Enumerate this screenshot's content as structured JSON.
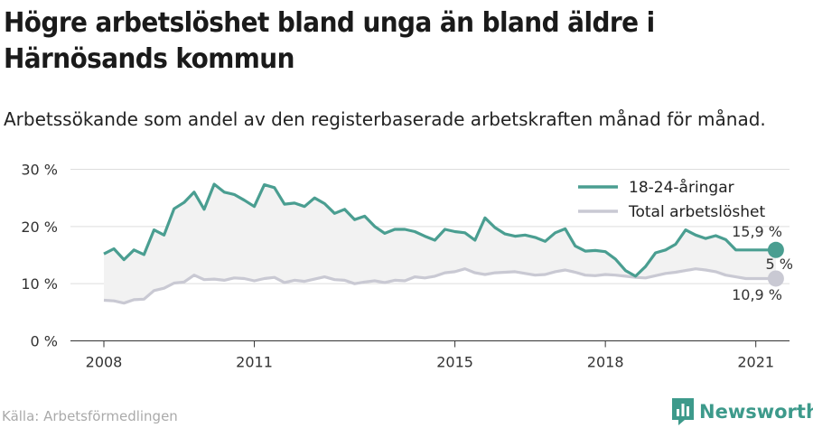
{
  "title": "Högre arbetslöshet bland unga än bland äldre i Härnösands kommun",
  "subtitle": "Arbetssökande som andel av den registerbaserade arbetskraften månad för månad.",
  "source": "Källa: Arbetsförmedlingen",
  "brand": {
    "label": "Newsworthy",
    "icon": "bar-chart-logo-icon"
  },
  "colors": {
    "youth": "#4a9e91",
    "total": "#c9c9d3",
    "gap": "#f2f2f2",
    "grid": "#dddddd"
  },
  "chart_data": {
    "type": "line",
    "x_ticks": [
      "2008",
      "2011",
      "2015",
      "2018",
      "2021"
    ],
    "y_ticks": [
      "0 %",
      "10 %",
      "20 %",
      "30 %"
    ],
    "ylim": [
      0,
      30
    ],
    "legend": [
      "18-24-åringar",
      "Total arbetslöshet"
    ],
    "legend_position": "top-right",
    "grid": "horizontal",
    "end_labels": {
      "youth": "15,9 %",
      "gap": "5 %",
      "total": "10,9 %"
    },
    "series": [
      {
        "name": "18-24-åringar",
        "x": [
          2008.0,
          2008.2,
          2008.4,
          2008.6,
          2008.8,
          2009.0,
          2009.2,
          2009.4,
          2009.6,
          2009.8,
          2010.0,
          2010.2,
          2010.4,
          2010.6,
          2010.8,
          2011.0,
          2011.2,
          2011.4,
          2011.6,
          2011.8,
          2012.0,
          2012.2,
          2012.4,
          2012.6,
          2012.8,
          2013.0,
          2013.2,
          2013.4,
          2013.6,
          2013.8,
          2014.0,
          2014.2,
          2014.4,
          2014.6,
          2014.8,
          2015.0,
          2015.2,
          2015.4,
          2015.6,
          2015.8,
          2016.0,
          2016.2,
          2016.4,
          2016.6,
          2016.8,
          2017.0,
          2017.2,
          2017.4,
          2017.6,
          2017.8,
          2018.0,
          2018.2,
          2018.4,
          2018.6,
          2018.8,
          2019.0,
          2019.2,
          2019.4,
          2019.6,
          2019.8,
          2020.0,
          2020.2,
          2020.4,
          2020.6,
          2020.8,
          2021.0,
          2021.2,
          2021.4
        ],
        "values": [
          15.2,
          16.1,
          14.2,
          15.9,
          15.1,
          19.4,
          18.5,
          23.1,
          24.2,
          26.0,
          23.0,
          27.4,
          26.0,
          25.6,
          24.6,
          23.5,
          27.3,
          26.8,
          23.9,
          24.1,
          23.5,
          25.0,
          24.0,
          22.3,
          23.0,
          21.2,
          21.8,
          20.0,
          18.8,
          19.5,
          19.5,
          19.1,
          18.3,
          17.6,
          19.5,
          19.1,
          18.9,
          17.6,
          21.5,
          19.8,
          18.7,
          18.3,
          18.5,
          18.1,
          17.4,
          18.9,
          19.6,
          16.6,
          15.7,
          15.8,
          15.6,
          14.3,
          12.3,
          11.3,
          13.0,
          15.4,
          15.9,
          16.9,
          19.4,
          18.5,
          17.9,
          18.4,
          17.7,
          15.9,
          15.9,
          15.9,
          15.9,
          15.9
        ]
      },
      {
        "name": "Total arbetslöshet",
        "x": [
          2008.0,
          2008.2,
          2008.4,
          2008.6,
          2008.8,
          2009.0,
          2009.2,
          2009.4,
          2009.6,
          2009.8,
          2010.0,
          2010.2,
          2010.4,
          2010.6,
          2010.8,
          2011.0,
          2011.2,
          2011.4,
          2011.6,
          2011.8,
          2012.0,
          2012.2,
          2012.4,
          2012.6,
          2012.8,
          2013.0,
          2013.2,
          2013.4,
          2013.6,
          2013.8,
          2014.0,
          2014.2,
          2014.4,
          2014.6,
          2014.8,
          2015.0,
          2015.2,
          2015.4,
          2015.6,
          2015.8,
          2016.0,
          2016.2,
          2016.4,
          2016.6,
          2016.8,
          2017.0,
          2017.2,
          2017.4,
          2017.6,
          2017.8,
          2018.0,
          2018.2,
          2018.4,
          2018.6,
          2018.8,
          2019.0,
          2019.2,
          2019.4,
          2019.6,
          2019.8,
          2020.0,
          2020.2,
          2020.4,
          2020.6,
          2020.8,
          2021.0,
          2021.2,
          2021.4
        ],
        "values": [
          7.1,
          7.0,
          6.6,
          7.2,
          7.3,
          8.8,
          9.2,
          10.1,
          10.3,
          11.5,
          10.7,
          10.8,
          10.6,
          11.0,
          10.9,
          10.5,
          10.9,
          11.1,
          10.2,
          10.6,
          10.4,
          10.8,
          11.2,
          10.7,
          10.6,
          10.0,
          10.3,
          10.5,
          10.2,
          10.6,
          10.5,
          11.2,
          11.0,
          11.3,
          11.9,
          12.1,
          12.6,
          11.9,
          11.6,
          11.9,
          12.0,
          12.1,
          11.8,
          11.5,
          11.6,
          12.1,
          12.4,
          12.0,
          11.5,
          11.4,
          11.6,
          11.5,
          11.3,
          11.1,
          11.0,
          11.4,
          11.8,
          12.0,
          12.3,
          12.6,
          12.4,
          12.1,
          11.5,
          11.2,
          10.9,
          10.9,
          10.9,
          10.9
        ]
      }
    ]
  }
}
